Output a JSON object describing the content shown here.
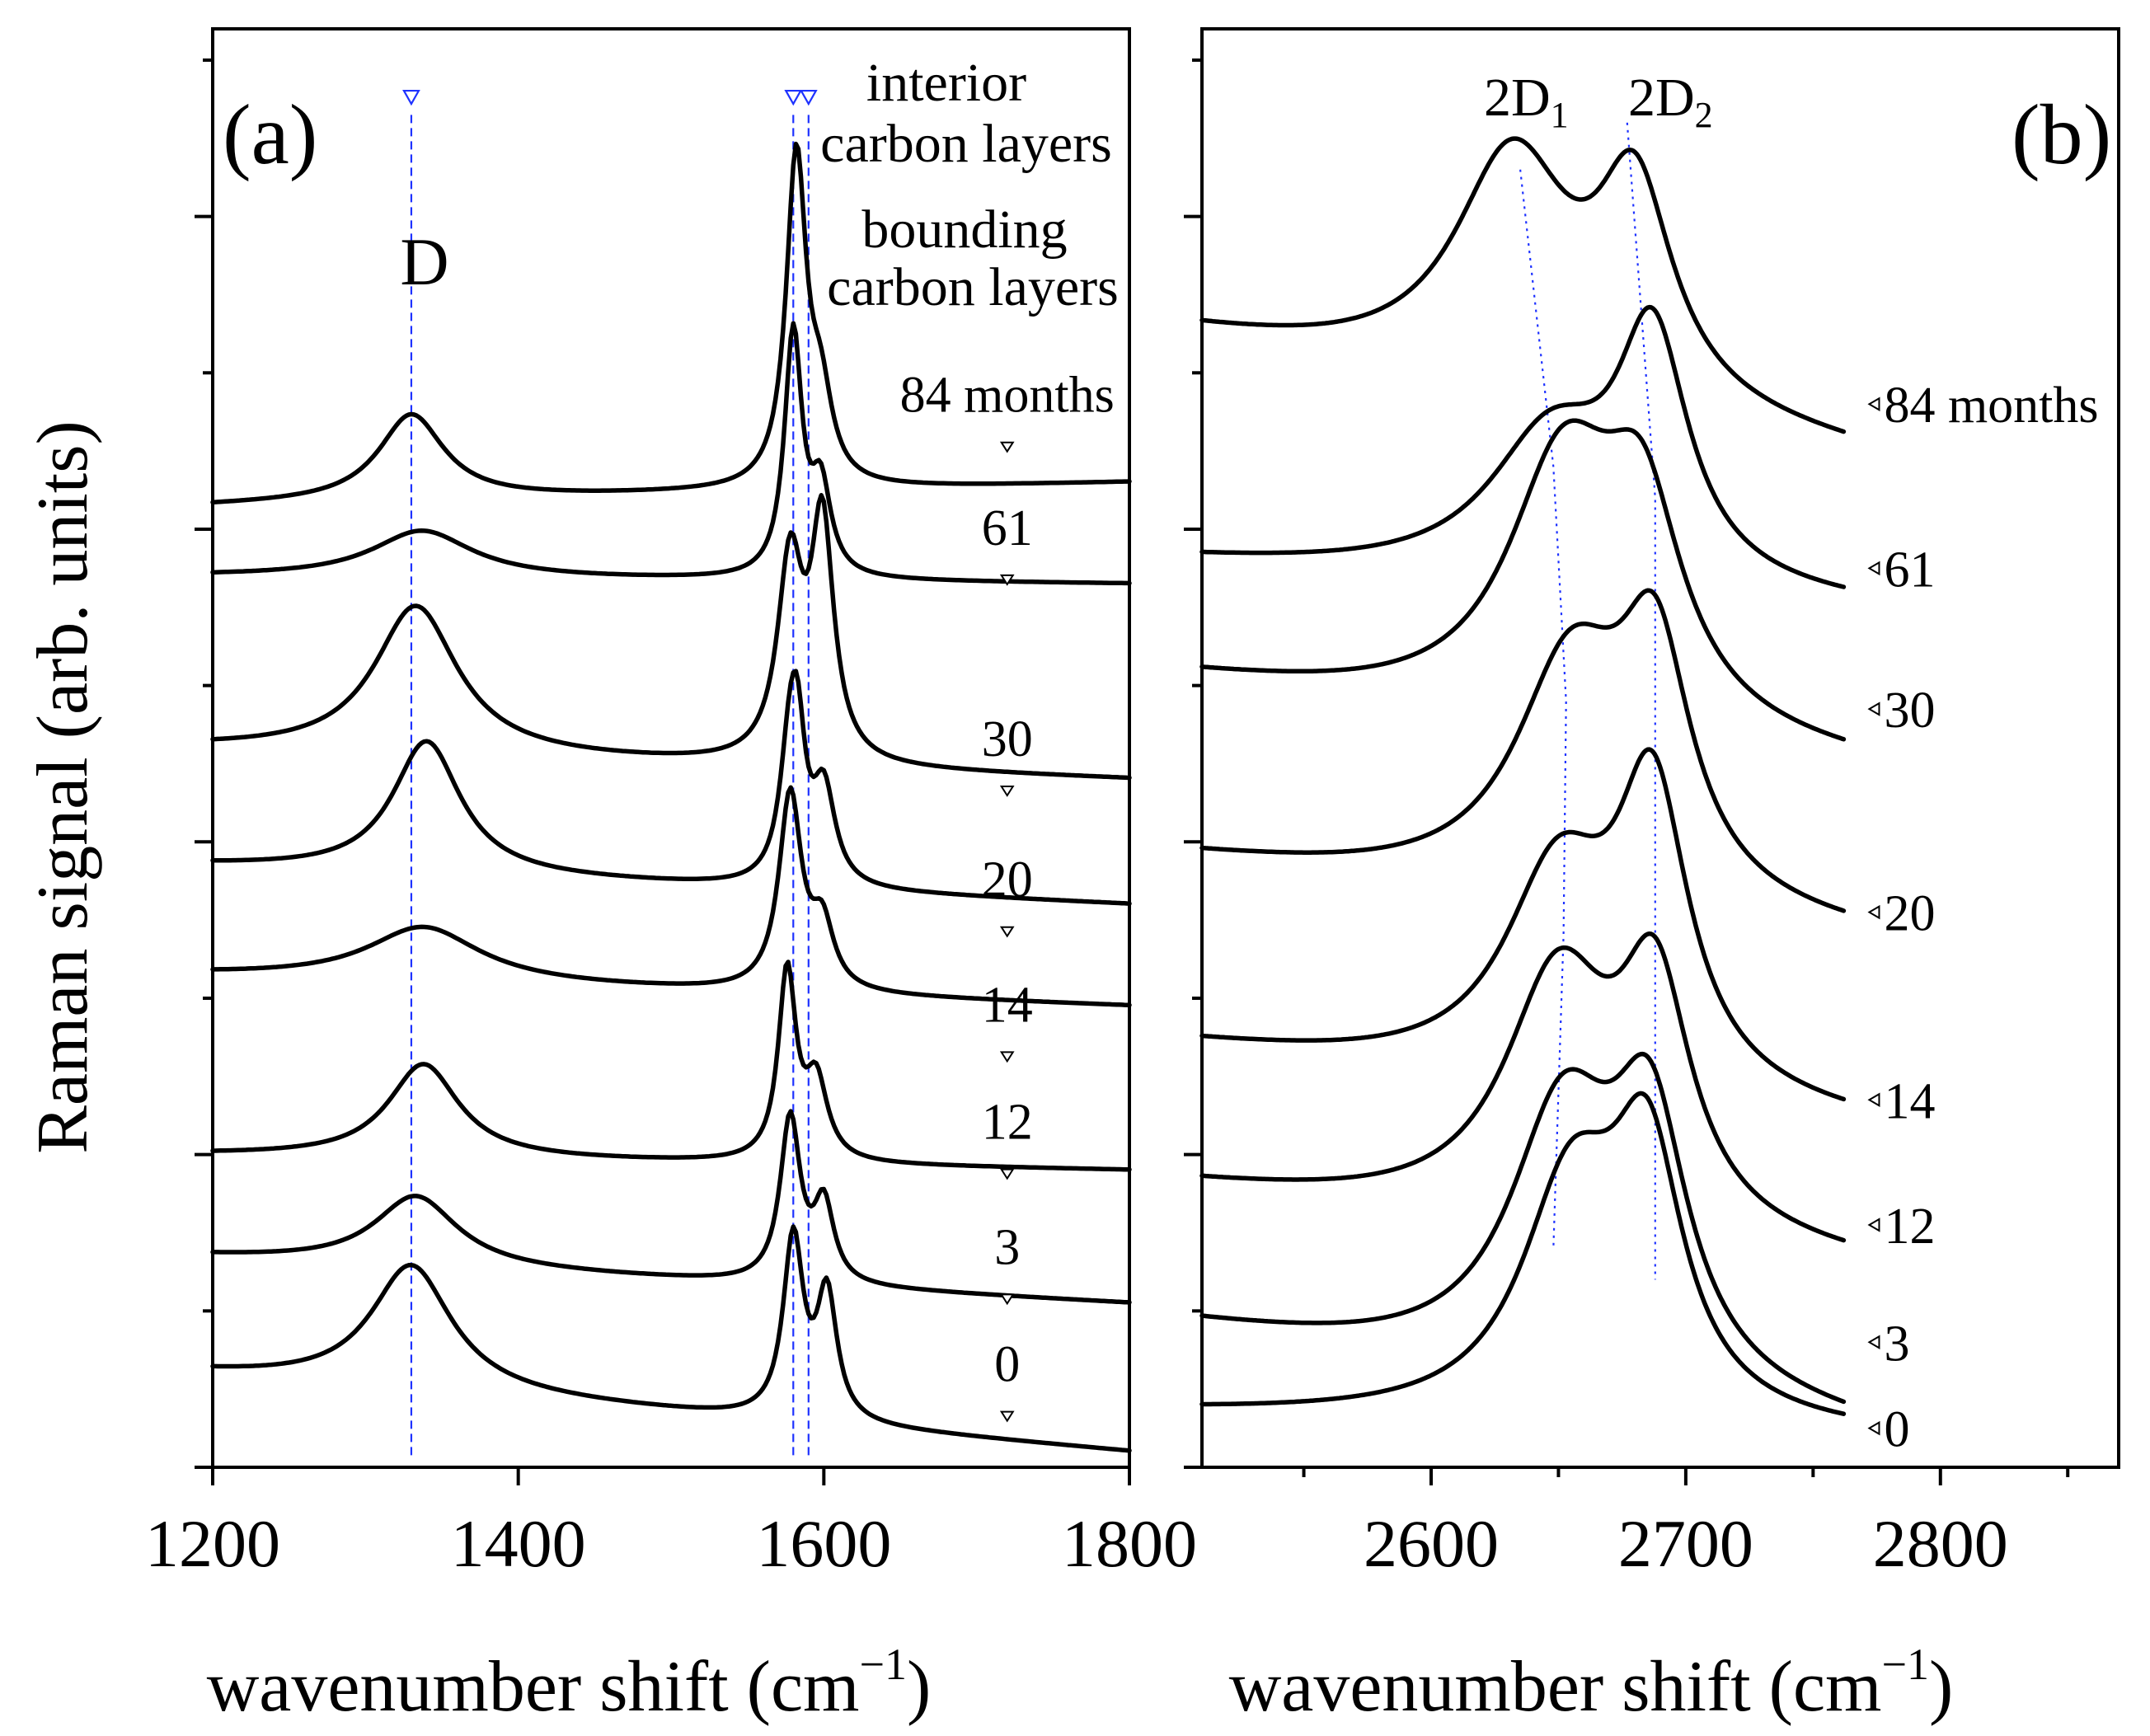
{
  "figure": {
    "ylabel": "Raman signal (arb. units)"
  },
  "panel_a": {
    "label": "(a)",
    "xlabel_main": "wavenumber shift (cm",
    "xlabel_sup": "−1",
    "xlabel_close": ")",
    "peak_D_label": "D",
    "interior_label_1": "interior",
    "interior_label_2": "carbon layers",
    "bounding_label_1": "bounding",
    "bounding_label_2": "carbon layers"
  },
  "panel_b": {
    "label": "(b)",
    "xlabel_main": "wavenumber shift (cm",
    "xlabel_sup": "−1",
    "xlabel_close": ")",
    "peak1_base": "2D",
    "peak1_sub": "1",
    "peak2_base": "2D",
    "peak2_sub": "2"
  },
  "colors": {
    "curve": "#000000",
    "guide": "#1e32ff",
    "background": "#ffffff"
  },
  "chart_data": [
    {
      "type": "line",
      "panel": "a",
      "title": "(a)",
      "xlabel": "wavenumber shift (cm−1)",
      "ylabel": "Raman signal (arb. units)",
      "xlim": [
        1200,
        1800
      ],
      "ylim": [
        0,
        9.2
      ],
      "xticks": [
        1200,
        1400,
        1600,
        1800
      ],
      "xtick_labels": [
        "1200",
        "1400",
        "1600",
        "1800"
      ],
      "yticks": [
        0,
        1,
        2,
        3,
        4,
        5,
        6,
        7,
        8,
        9
      ],
      "marker_x": 1720,
      "guides": [
        {
          "name": "D",
          "x": 1330
        },
        {
          "name": "interior carbon layers",
          "x": 1580
        },
        {
          "name": "bounding carbon layers",
          "x": 1590
        }
      ],
      "series": [
        {
          "name": "84 months",
          "label": "84 months",
          "baseline": 6.3,
          "drift": -0.15,
          "peaks": [
            [
              1330,
              0.55,
              26
            ],
            [
              1582,
              2.1,
              8
            ],
            [
              1598,
              0.5,
              9
            ]
          ],
          "label_y": 6.75
        },
        {
          "name": "61",
          "label": "61",
          "baseline": 5.65,
          "drift": 0.05,
          "peaks": [
            [
              1337,
              0.3,
              40
            ],
            [
              1580,
              1.55,
              7
            ],
            [
              1598,
              0.55,
              8
            ]
          ],
          "label_y": 5.9
        },
        {
          "name": "30",
          "label": "30",
          "baseline": 4.4,
          "drift": 0.2,
          "peaks": [
            [
              1333,
              0.95,
              33
            ],
            [
              1578,
              1.25,
              10
            ],
            [
              1599,
              1.5,
              9
            ]
          ],
          "label_y": 4.55
        },
        {
          "name": "20",
          "label": "20",
          "baseline": 3.6,
          "drift": 0.25,
          "peaks": [
            [
              1340,
              0.85,
              27
            ],
            [
              1578,
              0.85,
              8
            ],
            [
              1600,
              0.6,
              9
            ],
            [
              1583,
              0.6,
              6
            ]
          ],
          "label_y": 3.65
        },
        {
          "name": "14",
          "label": "14",
          "baseline": 2.95,
          "drift": 0.2,
          "peaks": [
            [
              1338,
              0.35,
              45
            ],
            [
              1578,
              1.25,
              9
            ],
            [
              1599,
              0.4,
              9
            ]
          ],
          "label_y": 2.85
        },
        {
          "name": "12",
          "label": "12",
          "baseline": 1.9,
          "drift": 0.1,
          "peaks": [
            [
              1338,
              0.6,
              28
            ],
            [
              1576,
              1.2,
              7
            ],
            [
              1595,
              0.5,
              9
            ]
          ],
          "label_y": 2.1
        },
        {
          "name": "3",
          "label": "3",
          "baseline": 1.05,
          "drift": 0.3,
          "peaks": [
            [
              1333,
              0.45,
              33
            ],
            [
              1578,
              1.05,
              8
            ],
            [
              1600,
              0.5,
              8
            ]
          ],
          "label_y": 1.3
        },
        {
          "name": "0",
          "label": "0",
          "baseline": 0.1,
          "drift": 0.5,
          "peaks": [
            [
              1330,
              0.8,
              32
            ],
            [
              1580,
              1.15,
              8
            ],
            [
              1602,
              0.8,
              8
            ]
          ],
          "label_y": 0.55
        }
      ]
    },
    {
      "type": "line",
      "panel": "b",
      "title": "(b)",
      "xlabel": "wavenumber shift (cm−1)",
      "ylabel": "Raman signal (arb. units)",
      "xlim": [
        2510,
        2870
      ],
      "ylim": [
        0,
        9.2
      ],
      "xticks": [
        2600,
        2700,
        2800
      ],
      "xtick_labels": [
        "2600",
        "2700",
        "2800"
      ],
      "minor_xticks": [
        2550,
        2650,
        2750,
        2850
      ],
      "yticks": [
        0,
        1,
        2,
        3,
        4,
        5,
        6,
        7,
        8,
        9
      ],
      "curve_end_x": 2762,
      "label_x": 2774,
      "guides": [
        {
          "name": "2D1",
          "points": [
            [
              2635,
              8.3
            ],
            [
              2648,
              6.4
            ],
            [
              2653,
              4.9
            ],
            [
              2652,
              3.4
            ],
            [
              2648,
              1.4
            ]
          ]
        },
        {
          "name": "2D2",
          "points": [
            [
              2677,
              8.6
            ],
            [
              2688,
              6.2
            ],
            [
              2688,
              1.2
            ]
          ]
        }
      ],
      "series": [
        {
          "name": "84 months",
          "label": "84 months",
          "baseline": 6.5,
          "drift": 0.75,
          "peaks": [
            [
              2632,
              1.45,
              28
            ],
            [
              2680,
              1.3,
              18
            ]
          ],
          "label_y": 6.8
        },
        {
          "name": "61",
          "label": "61",
          "baseline": 5.5,
          "drift": 0.3,
          "peaks": [
            [
              2647,
              0.9,
              30
            ],
            [
              2687,
              1.5,
              17
            ]
          ],
          "label_y": 5.75
        },
        {
          "name": "30",
          "label": "30",
          "baseline": 4.5,
          "drift": 0.55,
          "peaks": [
            [
              2652,
              1.6,
              27
            ],
            [
              2683,
              1.2,
              19
            ]
          ],
          "label_y": 4.85
        },
        {
          "name": "20",
          "label": "20",
          "baseline": 3.4,
          "drift": 0.5,
          "peaks": [
            [
              2655,
              1.45,
              27
            ],
            [
              2688,
              1.45,
              17
            ]
          ],
          "label_y": 3.55
        },
        {
          "name": "14",
          "label": "14",
          "baseline": 2.2,
          "drift": 0.5,
          "peaks": [
            [
              2650,
              1.3,
              26
            ],
            [
              2687,
              1.8,
              17
            ]
          ],
          "label_y": 2.35
        },
        {
          "name": "12",
          "label": "12",
          "baseline": 1.3,
          "drift": 0.5,
          "peaks": [
            [
              2650,
              1.55,
              26
            ],
            [
              2688,
              1.45,
              17
            ]
          ],
          "label_y": 1.55
        },
        {
          "name": "3",
          "label": "3",
          "baseline": 0.25,
          "drift": 0.65,
          "peaks": [
            [
              2652,
              1.65,
              26
            ],
            [
              2686,
              1.55,
              18
            ]
          ],
          "label_y": 0.8
        },
        {
          "name": "0",
          "label": "0",
          "baseline": 0.2,
          "drift": 0.15,
          "peaks": [
            [
              2655,
              1.45,
              24
            ],
            [
              2685,
              1.55,
              17
            ]
          ],
          "label_y": 0.25
        }
      ]
    }
  ]
}
